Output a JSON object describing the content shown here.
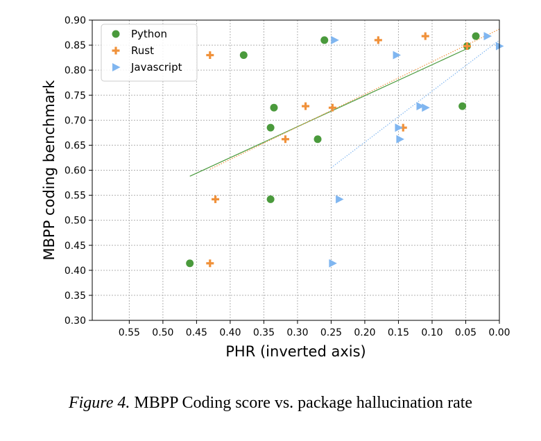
{
  "caption": {
    "label": "Figure 4.",
    "text": "MBPP Coding score vs. package hallucination rate"
  },
  "chart_data": {
    "type": "scatter",
    "xlabel": "PHR (inverted axis)",
    "ylabel": "MBPP coding benchmark",
    "x_inverted": true,
    "xlim": [
      0.605,
      0.0
    ],
    "ylim": [
      0.3,
      0.9
    ],
    "xticks": [
      "0.55",
      "0.50",
      "0.45",
      "0.40",
      "0.35",
      "0.30",
      "0.25",
      "0.20",
      "0.15",
      "0.10",
      "0.05",
      "0.00"
    ],
    "yticks": [
      "0.30",
      "0.35",
      "0.40",
      "0.45",
      "0.50",
      "0.55",
      "0.60",
      "0.65",
      "0.70",
      "0.75",
      "0.80",
      "0.85",
      "0.90"
    ],
    "grid": true,
    "legend_position": "top-left",
    "series": [
      {
        "name": "Python",
        "marker": "circle",
        "color": "#4a9a3c",
        "points": [
          [
            0.46,
            0.414
          ],
          [
            0.34,
            0.542
          ],
          [
            0.27,
            0.662
          ],
          [
            0.34,
            0.685
          ],
          [
            0.335,
            0.725
          ],
          [
            0.055,
            0.728
          ],
          [
            0.38,
            0.83
          ],
          [
            0.26,
            0.86
          ],
          [
            0.035,
            0.868
          ],
          [
            0.048,
            0.848
          ]
        ],
        "trend": [
          [
            0.46,
            0.588
          ],
          [
            0.048,
            0.843
          ]
        ]
      },
      {
        "name": "Rust",
        "marker": "plus",
        "color": "#f0913a",
        "points": [
          [
            0.43,
            0.414
          ],
          [
            0.422,
            0.542
          ],
          [
            0.318,
            0.662
          ],
          [
            0.143,
            0.685
          ],
          [
            0.288,
            0.728
          ],
          [
            0.248,
            0.725
          ],
          [
            0.43,
            0.83
          ],
          [
            0.18,
            0.86
          ],
          [
            0.11,
            0.868
          ],
          [
            0.048,
            0.848
          ]
        ],
        "trend": [
          [
            0.43,
            0.602
          ],
          [
            0.0,
            0.882
          ]
        ]
      },
      {
        "name": "Javascript",
        "marker": "triangle-right",
        "color": "#80b6f0",
        "points": [
          [
            0.248,
            0.414
          ],
          [
            0.238,
            0.542
          ],
          [
            0.148,
            0.662
          ],
          [
            0.15,
            0.685
          ],
          [
            0.118,
            0.728
          ],
          [
            0.11,
            0.725
          ],
          [
            0.153,
            0.83
          ],
          [
            0.245,
            0.86
          ],
          [
            0.018,
            0.868
          ],
          [
            0.0,
            0.848
          ]
        ],
        "trend": [
          [
            0.25,
            0.605
          ],
          [
            0.0,
            0.86
          ]
        ]
      }
    ]
  }
}
